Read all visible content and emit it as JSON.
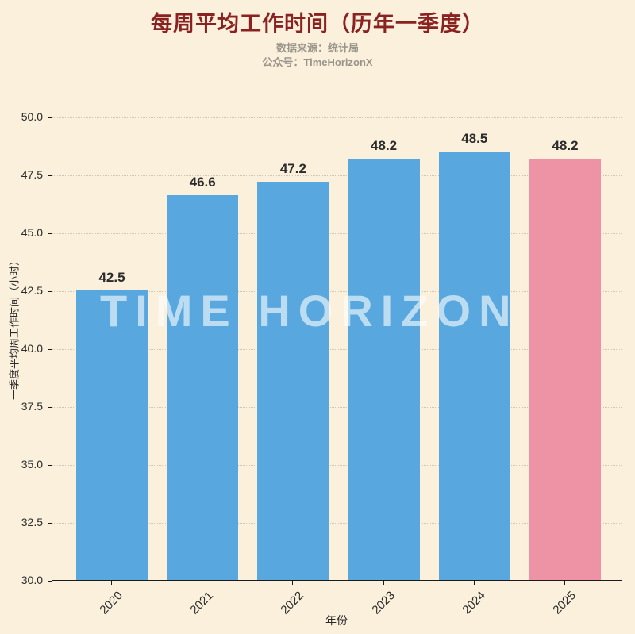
{
  "header": {
    "title": "每周平均工作时间（历年一季度）",
    "subtitle_source": "数据来源：统计局",
    "subtitle_account": "公众号：TimeHorizonX"
  },
  "watermark": "TIME HORIZON",
  "chart_data": {
    "type": "bar",
    "title": "每周平均工作时间（历年一季度）",
    "categories": [
      "2020",
      "2021",
      "2022",
      "2023",
      "2024",
      "2025"
    ],
    "values": [
      42.5,
      46.6,
      47.2,
      48.2,
      48.5,
      48.2
    ],
    "value_labels": [
      "42.5",
      "46.6",
      "47.2",
      "48.2",
      "48.5",
      "48.2"
    ],
    "bar_colors": [
      "#58A8DF",
      "#58A8DF",
      "#58A8DF",
      "#58A8DF",
      "#58A8DF",
      "#EE93A6"
    ],
    "xlabel": "年份",
    "ylabel": "一季度平均周工作时间（小时）",
    "ylim": [
      30,
      51.8
    ],
    "yticks": [
      30.0,
      32.5,
      35.0,
      37.5,
      40.0,
      42.5,
      45.0,
      47.5,
      50.0
    ],
    "ytick_labels": [
      "30.0",
      "32.5",
      "35.0",
      "37.5",
      "40.0",
      "42.5",
      "45.0",
      "47.5",
      "50.0"
    ],
    "grid": true,
    "legend": "none"
  },
  "colors": {
    "background": "#FAF0DC",
    "title": "#8B2222",
    "subtitle": "#99938A",
    "bar_default": "#58A8DF",
    "bar_highlight": "#EE93A6",
    "axis": "#1A1A1A",
    "tick_text": "#2B2B2B",
    "value_text": "#2B2B2B",
    "watermark_text": "rgba(255,255,255,0.60)"
  }
}
